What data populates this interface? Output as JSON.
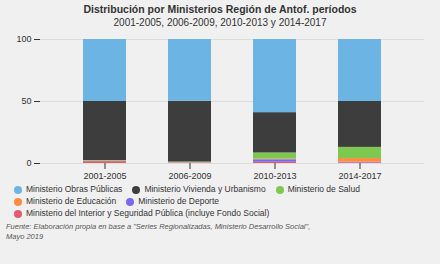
{
  "chart_data": {
    "type": "bar",
    "title": "Distribución por Ministerios Región de Antof. períodos",
    "subtitle": "2001-2005, 2006-2009, 2010-2013 y 2014-2017",
    "caption": "Fuente: Elaboración propia en base a \"Series Regionalizadas, Ministerio Desarrollo Social\",\nMayo 2019",
    "categories": [
      "2001-2005",
      "2006-2009",
      "2010-2013",
      "2014-2017"
    ],
    "series": [
      {
        "name": "Ministerio del Interior y Seguridad Pública (incluye Fondo Social)",
        "color": "#e05c6e",
        "values": [
          1.5,
          0.3,
          1.0,
          0.5
        ]
      },
      {
        "name": "Ministerio de Deporte",
        "color": "#7b68ee",
        "values": [
          0.2,
          0.2,
          2.0,
          0.5
        ]
      },
      {
        "name": "Ministerio de Educación",
        "color": "#ff8c42",
        "values": [
          0.2,
          0.2,
          0.5,
          3.0
        ]
      },
      {
        "name": "Ministerio de Salud",
        "color": "#7ec850",
        "values": [
          0.5,
          0.5,
          5.0,
          9.0
        ]
      },
      {
        "name": "Ministerio Vivienda y Urbanismo",
        "color": "#3d3d3d",
        "values": [
          47.6,
          49.0,
          32.5,
          37.0
        ]
      },
      {
        "name": "Ministerio Obras Públicas",
        "color": "#6cb4e4",
        "values": [
          50.0,
          49.8,
          59.0,
          50.0
        ]
      }
    ],
    "stacked": true,
    "ylim": [
      0,
      100
    ],
    "yticks": [
      0,
      50,
      100
    ],
    "grid": true,
    "legend": "bottom"
  }
}
